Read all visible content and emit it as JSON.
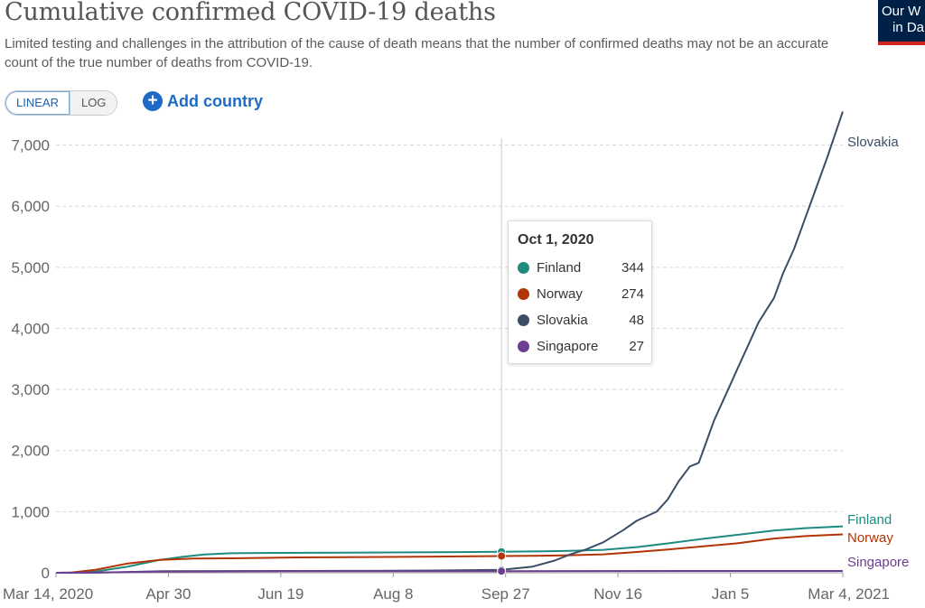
{
  "header": {
    "title": "Cumulative confirmed COVID-19 deaths",
    "subtitle": "Limited testing and challenges in the attribution of the cause of death means that the number of confirmed deaths may not be an accurate count of the true number of deaths from COVID-19.",
    "logo_line1": "Our W",
    "logo_line2": "in Da"
  },
  "controls": {
    "scale_options": [
      "LINEAR",
      "LOG"
    ],
    "active_scale": "LINEAR",
    "add_country_label": "Add country",
    "add_icon": "plus-circle-icon"
  },
  "tooltip": {
    "date": "Oct 1, 2020",
    "rows": [
      {
        "name": "Finland",
        "value": "344",
        "color": "#1f8a80"
      },
      {
        "name": "Norway",
        "value": "274",
        "color": "#b13507"
      },
      {
        "name": "Slovakia",
        "value": "48",
        "color": "#3c4e66"
      },
      {
        "name": "Singapore",
        "value": "27",
        "color": "#6d3e91"
      }
    ]
  },
  "chart_data": {
    "type": "line",
    "title": "Cumulative confirmed COVID-19 deaths",
    "x_start": "2020-03-14",
    "x_end": "2021-03-04",
    "x_ticks": [
      "Mar 14, 2020",
      "Apr 30",
      "Jun 19",
      "Aug 8",
      "Sep 27",
      "Nov 16",
      "Jan 5",
      "Mar 4, 2021"
    ],
    "y_ticks": [
      0,
      1000,
      2000,
      3000,
      4000,
      5000,
      6000,
      7000
    ],
    "y_tick_labels": [
      "0",
      "1,000",
      "2,000",
      "3,000",
      "4,000",
      "5,000",
      "6,000",
      "7,000"
    ],
    "ylim": [
      0,
      7600
    ],
    "grid": "horizontal dashed",
    "legend": "line-end labels",
    "hover_date": "2020-10-01",
    "series": [
      {
        "name": "Finland",
        "color": "#1f8a80",
        "points": [
          [
            "2020-03-14",
            0
          ],
          [
            "2020-03-21",
            1
          ],
          [
            "2020-04-01",
            20
          ],
          [
            "2020-04-15",
            98
          ],
          [
            "2020-04-30",
            211
          ],
          [
            "2020-05-10",
            260
          ],
          [
            "2020-05-20",
            300
          ],
          [
            "2020-06-01",
            320
          ],
          [
            "2020-06-20",
            326
          ],
          [
            "2020-08-01",
            331
          ],
          [
            "2020-09-01",
            336
          ],
          [
            "2020-10-01",
            344
          ],
          [
            "2020-10-20",
            350
          ],
          [
            "2020-11-01",
            360
          ],
          [
            "2020-11-16",
            375
          ],
          [
            "2020-12-01",
            420
          ],
          [
            "2020-12-15",
            480
          ],
          [
            "2021-01-01",
            560
          ],
          [
            "2021-01-15",
            620
          ],
          [
            "2021-02-01",
            690
          ],
          [
            "2021-02-15",
            730
          ],
          [
            "2021-03-04",
            760
          ]
        ]
      },
      {
        "name": "Norway",
        "color": "#b13507",
        "points": [
          [
            "2020-03-14",
            0
          ],
          [
            "2020-03-21",
            5
          ],
          [
            "2020-04-01",
            50
          ],
          [
            "2020-04-15",
            150
          ],
          [
            "2020-04-30",
            210
          ],
          [
            "2020-05-15",
            232
          ],
          [
            "2020-06-01",
            237
          ],
          [
            "2020-07-01",
            251
          ],
          [
            "2020-08-01",
            258
          ],
          [
            "2020-09-01",
            265
          ],
          [
            "2020-10-01",
            274
          ],
          [
            "2020-10-20",
            280
          ],
          [
            "2020-11-01",
            287
          ],
          [
            "2020-11-16",
            302
          ],
          [
            "2020-12-01",
            340
          ],
          [
            "2020-12-15",
            380
          ],
          [
            "2021-01-01",
            436
          ],
          [
            "2021-01-15",
            480
          ],
          [
            "2021-02-01",
            560
          ],
          [
            "2021-02-15",
            600
          ],
          [
            "2021-03-04",
            628
          ]
        ]
      },
      {
        "name": "Slovakia",
        "color": "#3c4e66",
        "points": [
          [
            "2020-03-14",
            0
          ],
          [
            "2020-04-01",
            2
          ],
          [
            "2020-05-01",
            25
          ],
          [
            "2020-06-01",
            28
          ],
          [
            "2020-08-01",
            31
          ],
          [
            "2020-09-01",
            37
          ],
          [
            "2020-10-01",
            48
          ],
          [
            "2020-10-15",
            100
          ],
          [
            "2020-10-25",
            200
          ],
          [
            "2020-11-01",
            300
          ],
          [
            "2020-11-08",
            380
          ],
          [
            "2020-11-16",
            500
          ],
          [
            "2020-11-25",
            700
          ],
          [
            "2020-12-01",
            850
          ],
          [
            "2020-12-10",
            1000
          ],
          [
            "2020-12-15",
            1200
          ],
          [
            "2020-12-20",
            1500
          ],
          [
            "2020-12-25",
            1740
          ],
          [
            "2020-12-29",
            1800
          ],
          [
            "2021-01-01",
            2100
          ],
          [
            "2021-01-05",
            2500
          ],
          [
            "2021-01-10",
            2900
          ],
          [
            "2021-01-15",
            3300
          ],
          [
            "2021-01-20",
            3700
          ],
          [
            "2021-01-25",
            4100
          ],
          [
            "2021-02-01",
            4500
          ],
          [
            "2021-02-05",
            4900
          ],
          [
            "2021-02-10",
            5300
          ],
          [
            "2021-02-15",
            5800
          ],
          [
            "2021-02-20",
            6300
          ],
          [
            "2021-02-25",
            6800
          ],
          [
            "2021-03-04",
            7550
          ]
        ]
      },
      {
        "name": "Singapore",
        "color": "#6d3e91",
        "points": [
          [
            "2020-03-14",
            0
          ],
          [
            "2020-03-21",
            2
          ],
          [
            "2020-04-01",
            4
          ],
          [
            "2020-04-15",
            10
          ],
          [
            "2020-04-30",
            18
          ],
          [
            "2020-05-15",
            21
          ],
          [
            "2020-06-01",
            23
          ],
          [
            "2020-07-01",
            26
          ],
          [
            "2020-08-01",
            27
          ],
          [
            "2020-10-01",
            27
          ],
          [
            "2021-01-01",
            29
          ],
          [
            "2021-03-04",
            29
          ]
        ]
      }
    ]
  }
}
